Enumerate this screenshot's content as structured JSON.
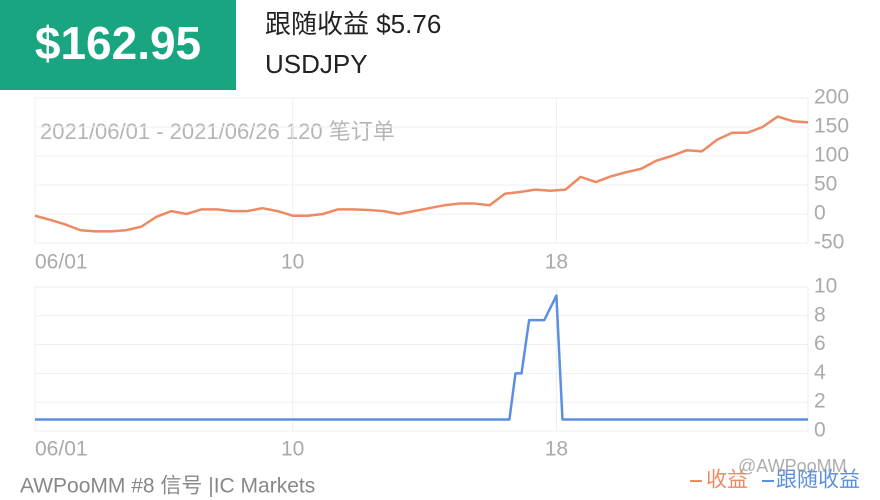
{
  "header": {
    "profit": "$162.95",
    "follow": "跟随收益 $5.76",
    "symbol": "USDJPY"
  },
  "footer": {
    "signal": "AWPooMM #8 信号 |IC Markets",
    "watermark": "@AWPooMM"
  },
  "chart_data": [
    {
      "type": "line",
      "subtitle": "2021/06/01 - 2021/06/26 120 笔订单",
      "x": [
        0,
        1,
        2,
        3,
        4,
        5,
        6,
        7,
        8,
        9,
        10,
        11,
        12,
        13,
        14,
        15,
        16,
        17,
        18,
        19,
        20,
        21,
        22,
        23,
        24,
        25,
        26,
        27,
        28,
        29,
        30,
        31,
        32,
        33,
        34,
        35,
        36,
        37,
        38,
        39,
        40,
        41,
        42,
        43,
        44,
        45,
        46,
        47,
        48,
        49,
        50,
        51
      ],
      "series": [
        {
          "name": "收益",
          "color": "#ee8a63",
          "values": [
            -3,
            -10,
            -18,
            -28,
            -30,
            -30,
            -28,
            -22,
            -5,
            5,
            0,
            8,
            8,
            5,
            5,
            10,
            5,
            -3,
            -3,
            0,
            8,
            8,
            7,
            5,
            0,
            5,
            10,
            15,
            18,
            18,
            15,
            35,
            38,
            42,
            40,
            42,
            64,
            55,
            65,
            72,
            78,
            92,
            100,
            110,
            108,
            128,
            140,
            140,
            150,
            168,
            160,
            158
          ]
        }
      ],
      "xlim": [
        0,
        51
      ],
      "xticks": [
        {
          "value": 0,
          "label": "06/01"
        },
        {
          "value": 17,
          "label": "10"
        },
        {
          "value": 34.4,
          "label": "18"
        }
      ],
      "ylim": [
        -50,
        200
      ],
      "yticks": [
        200,
        150,
        100,
        50,
        0,
        -50
      ],
      "grid": true
    },
    {
      "type": "line",
      "x": [
        0,
        31.3,
        31.7,
        32.1,
        32.6,
        33.6,
        34.4,
        34.8,
        51
      ],
      "series": [
        {
          "name": "跟随收益",
          "color": "#5b8fe0",
          "values": [
            0.8,
            0.8,
            4,
            4,
            7.7,
            7.7,
            9.4,
            0.8,
            0.8
          ]
        }
      ],
      "xlim": [
        0,
        51
      ],
      "xticks": [
        {
          "value": 0,
          "label": "06/01"
        },
        {
          "value": 17,
          "label": "10"
        },
        {
          "value": 34.4,
          "label": "18"
        }
      ],
      "ylim": [
        0,
        10
      ],
      "yticks": [
        10,
        8,
        6,
        4,
        2,
        0
      ],
      "grid": true
    }
  ]
}
